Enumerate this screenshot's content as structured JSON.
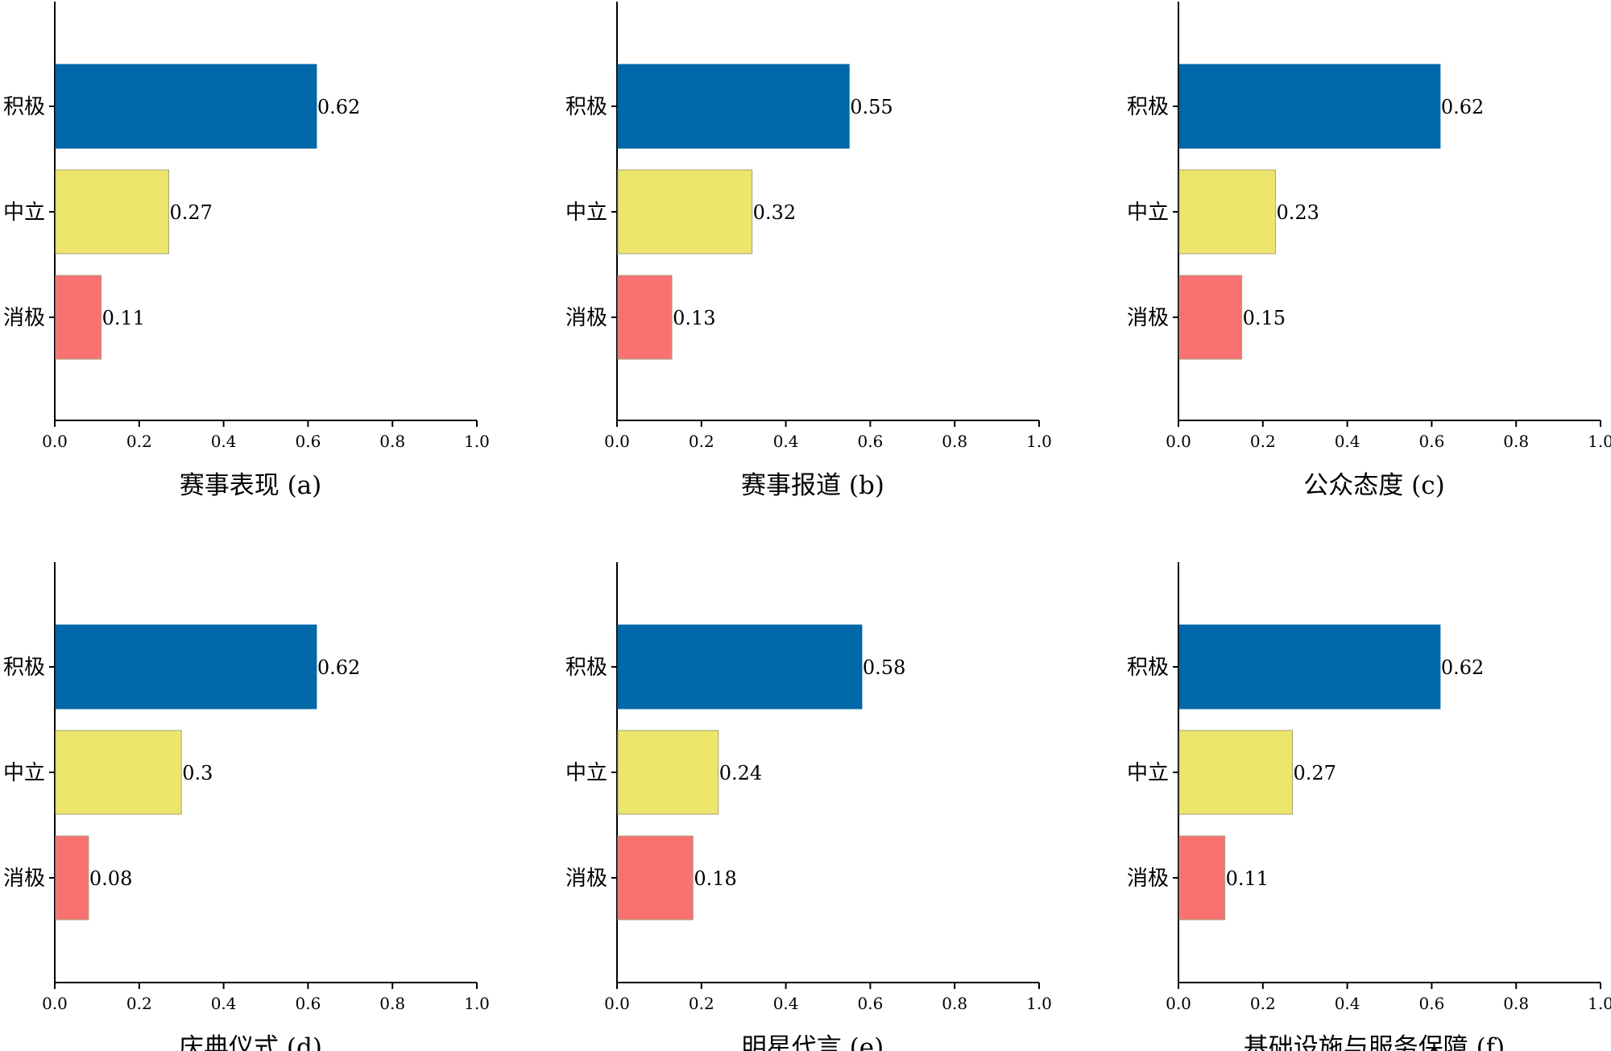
{
  "chart_data": [
    {
      "type": "bar",
      "orientation": "horizontal",
      "title": "赛事表现 (a)",
      "categories": [
        "积极",
        "中立",
        "消极"
      ],
      "values": [
        0.62,
        0.27,
        0.11
      ],
      "value_labels": [
        "0.62",
        "0.27",
        "0.11"
      ],
      "colors": [
        "#0067a9",
        "#ece66c",
        "#f87272"
      ],
      "xlim": [
        0,
        1.0
      ],
      "xticks": [
        "0.0",
        "0.2",
        "0.4",
        "0.6",
        "0.8",
        "1.0"
      ],
      "grid": false
    },
    {
      "type": "bar",
      "orientation": "horizontal",
      "title": "赛事报道 (b)",
      "categories": [
        "积极",
        "中立",
        "消极"
      ],
      "values": [
        0.55,
        0.32,
        0.13
      ],
      "value_labels": [
        "0.55",
        "0.32",
        "0.13"
      ],
      "colors": [
        "#0067a9",
        "#ece66c",
        "#f87272"
      ],
      "xlim": [
        0,
        1.0
      ],
      "xticks": [
        "0.0",
        "0.2",
        "0.4",
        "0.6",
        "0.8",
        "1.0"
      ],
      "grid": false
    },
    {
      "type": "bar",
      "orientation": "horizontal",
      "title": "公众态度 (c)",
      "categories": [
        "积极",
        "中立",
        "消极"
      ],
      "values": [
        0.62,
        0.23,
        0.15
      ],
      "value_labels": [
        "0.62",
        "0.23",
        "0.15"
      ],
      "colors": [
        "#0067a9",
        "#ece66c",
        "#f87272"
      ],
      "xlim": [
        0,
        1.0
      ],
      "xticks": [
        "0.0",
        "0.2",
        "0.4",
        "0.6",
        "0.8",
        "1.0"
      ],
      "grid": false
    },
    {
      "type": "bar",
      "orientation": "horizontal",
      "title": "庆典仪式 (d)",
      "categories": [
        "积极",
        "中立",
        "消极"
      ],
      "values": [
        0.62,
        0.3,
        0.08
      ],
      "value_labels": [
        "0.62",
        "0.3",
        "0.08"
      ],
      "colors": [
        "#0067a9",
        "#ece66c",
        "#f87272"
      ],
      "xlim": [
        0,
        1.0
      ],
      "xticks": [
        "0.0",
        "0.2",
        "0.4",
        "0.6",
        "0.8",
        "1.0"
      ],
      "grid": false
    },
    {
      "type": "bar",
      "orientation": "horizontal",
      "title": "明星代言 (e)",
      "categories": [
        "积极",
        "中立",
        "消极"
      ],
      "values": [
        0.58,
        0.24,
        0.18
      ],
      "value_labels": [
        "0.58",
        "0.24",
        "0.18"
      ],
      "colors": [
        "#0067a9",
        "#ece66c",
        "#f87272"
      ],
      "xlim": [
        0,
        1.0
      ],
      "xticks": [
        "0.0",
        "0.2",
        "0.4",
        "0.6",
        "0.8",
        "1.0"
      ],
      "grid": false
    },
    {
      "type": "bar",
      "orientation": "horizontal",
      "title": "基础设施与服务保障 (f)",
      "categories": [
        "积极",
        "中立",
        "消极"
      ],
      "values": [
        0.62,
        0.27,
        0.11
      ],
      "value_labels": [
        "0.62",
        "0.27",
        "0.11"
      ],
      "colors": [
        "#0067a9",
        "#ece66c",
        "#f87272"
      ],
      "xlim": [
        0,
        1.0
      ],
      "xticks": [
        "0.0",
        "0.2",
        "0.4",
        "0.6",
        "0.8",
        "1.0"
      ],
      "grid": false
    }
  ]
}
